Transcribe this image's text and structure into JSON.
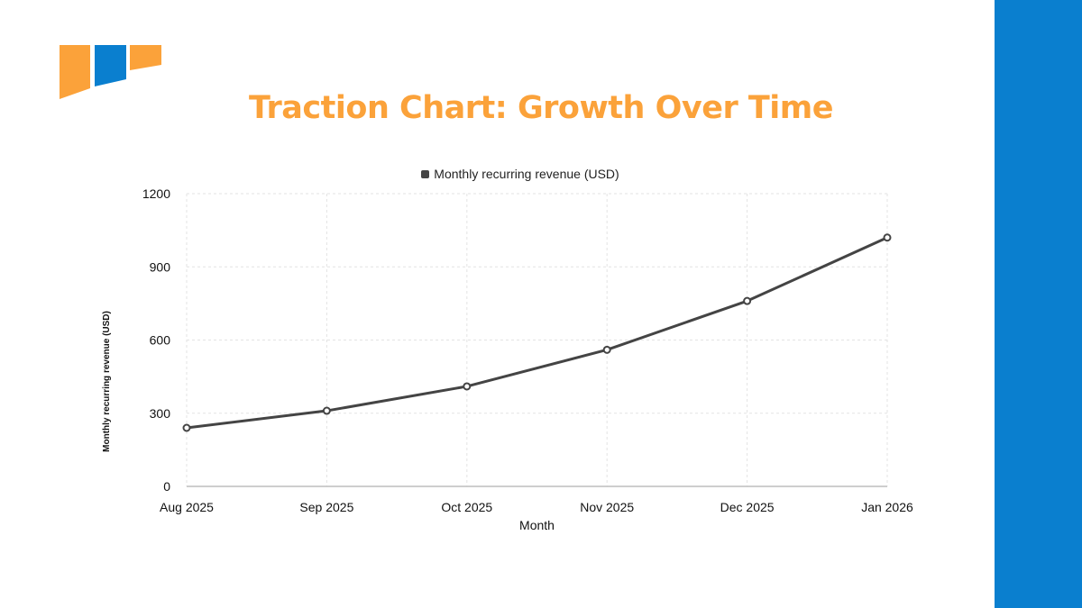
{
  "slide": {
    "title": "Traction Chart: Growth Over Time",
    "colors": {
      "title": "#fba23a",
      "side_bar": "#0a7fcf",
      "logo_orange": "#fba23a",
      "logo_blue": "#0a7fcf",
      "line": "#444444"
    }
  },
  "legend": {
    "label": "Monthly recurring revenue (USD)"
  },
  "axes": {
    "x_title": "Month",
    "y_title": "Monthly recurring revenue (USD)",
    "y_ticks": [
      "0",
      "300",
      "600",
      "900",
      "1200"
    ],
    "x_ticks": [
      "Aug 2025",
      "Sep 2025",
      "Oct 2025",
      "Nov 2025",
      "Dec 2025",
      "Jan 2026"
    ]
  },
  "chart_data": {
    "type": "line",
    "title": "Traction Chart: Growth Over Time",
    "categories": [
      "Aug 2025",
      "Sep 2025",
      "Oct 2025",
      "Nov 2025",
      "Dec 2025",
      "Jan 2026"
    ],
    "series": [
      {
        "name": "Monthly recurring revenue (USD)",
        "values": [
          240,
          310,
          410,
          560,
          760,
          1020
        ]
      }
    ],
    "xlabel": "Month",
    "ylabel": "Monthly recurring revenue (USD)",
    "ylim": [
      0,
      1200
    ],
    "yticks": [
      0,
      300,
      600,
      900,
      1200
    ],
    "grid": true,
    "legend_position": "top"
  }
}
